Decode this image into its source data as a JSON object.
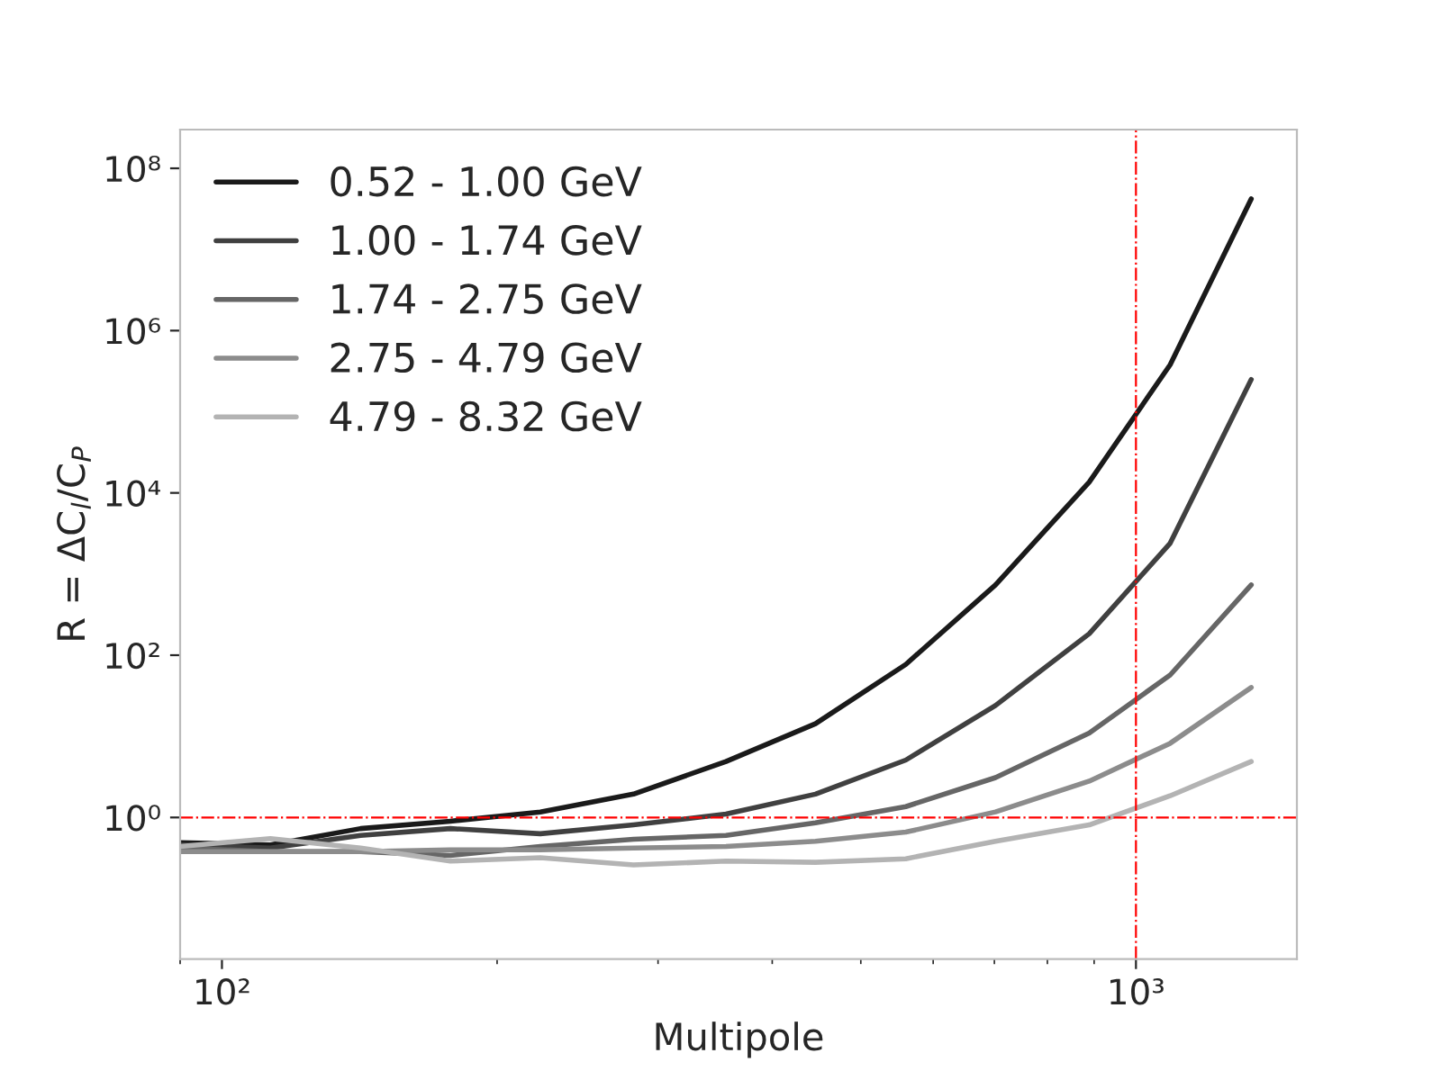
{
  "chart_data": {
    "type": "line",
    "xlabel": "Multipole",
    "ylabel": "R = ΔC$_{l}$/C$_{P}$",
    "x": [
      90.1,
      113,
      141.8,
      177.8,
      223,
      282,
      356,
      446,
      560,
      702,
      889,
      1090,
      1337
    ],
    "series": [
      {
        "name": "0.52 - 1.00 GeV",
        "color": "#1a1a1a",
        "values": [
          0.49,
          0.46,
          0.73,
          0.9,
          1.17,
          1.94,
          4.9,
          14.3,
          77,
          735,
          13600,
          380000,
          42000000
        ]
      },
      {
        "name": "1.00 - 1.74 GeV",
        "color": "#404040",
        "values": [
          0.46,
          0.42,
          0.6,
          0.73,
          0.63,
          0.81,
          1.1,
          1.94,
          5.1,
          24,
          184,
          2400,
          250000
        ]
      },
      {
        "name": "1.74 - 2.75 GeV",
        "color": "#666666",
        "values": [
          0.42,
          0.38,
          0.38,
          0.34,
          0.44,
          0.54,
          0.6,
          0.86,
          1.36,
          3.1,
          11,
          57,
          735
        ]
      },
      {
        "name": "2.75 - 4.79 GeV",
        "color": "#8c8c8c",
        "values": [
          0.38,
          0.38,
          0.38,
          0.4,
          0.4,
          0.42,
          0.44,
          0.51,
          0.66,
          1.17,
          2.8,
          8.2,
          40
        ]
      },
      {
        "name": "4.79 - 8.32 GeV",
        "color": "#b3b3b3",
        "values": [
          0.44,
          0.55,
          0.42,
          0.29,
          0.32,
          0.26,
          0.29,
          0.28,
          0.31,
          0.51,
          0.81,
          1.85,
          4.9
        ]
      }
    ],
    "log": "xy",
    "xlim": [
      90,
      1500
    ],
    "ylim": [
      0.018,
      300000000
    ],
    "xticks": [
      {
        "value": 100,
        "label": "10²"
      },
      {
        "value": 1000,
        "label": "10³"
      }
    ],
    "yticks": [
      {
        "value": 1,
        "label": "10⁰"
      },
      {
        "value": 100,
        "label": "10²"
      },
      {
        "value": 10000,
        "label": "10⁴"
      },
      {
        "value": 1000000,
        "label": "10⁶"
      },
      {
        "value": 100000000,
        "label": "10⁸"
      }
    ],
    "ref_lines": [
      {
        "axis": "y",
        "value": 1,
        "color": "#ff0000",
        "line_style": "dashdot"
      },
      {
        "axis": "x",
        "value": 1000,
        "color": "#ff0000",
        "line_style": "dashdot"
      }
    ],
    "grid": false,
    "legend": "top left",
    "marker": "none",
    "line_style": "solid"
  }
}
